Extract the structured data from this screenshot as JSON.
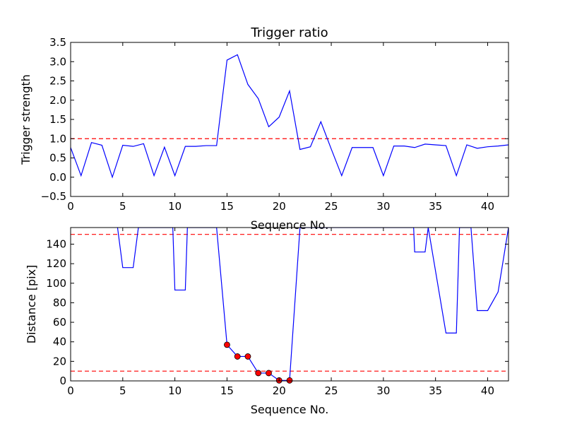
{
  "chart_data": [
    {
      "type": "line",
      "title": "Trigger ratio",
      "xlabel": "Sequence No.",
      "ylabel": "Trigger strength",
      "xlim": [
        0,
        42
      ],
      "ylim": [
        -0.5,
        3.5
      ],
      "xticks": [
        0,
        5,
        10,
        15,
        20,
        25,
        30,
        35,
        40
      ],
      "yticks": [
        -0.5,
        0.0,
        0.5,
        1.0,
        1.5,
        2.0,
        2.5,
        3.0,
        3.5
      ],
      "xtick_labels": [
        "0",
        "5",
        "10",
        "15",
        "20",
        "25",
        "30",
        "35",
        "40"
      ],
      "ytick_labels": [
        "−0.5",
        "0.0",
        "0.5",
        "1.0",
        "1.5",
        "2.0",
        "2.5",
        "3.0",
        "3.5"
      ],
      "grid": false,
      "series": [
        {
          "color": "#0000ff",
          "x": [
            0,
            1,
            2,
            3,
            4,
            5,
            6,
            7,
            8,
            9,
            10,
            11,
            12,
            13,
            14,
            15,
            16,
            17,
            18,
            19,
            20,
            21,
            22,
            23,
            24,
            25,
            26,
            27,
            28,
            29,
            30,
            31,
            32,
            33,
            34,
            35,
            36,
            37,
            38,
            39,
            40,
            41,
            42
          ],
          "y": [
            0.77,
            0.04,
            0.9,
            0.83,
            0.0,
            0.83,
            0.8,
            0.87,
            0.04,
            0.78,
            0.04,
            0.8,
            0.8,
            0.82,
            0.82,
            3.04,
            3.18,
            2.41,
            2.04,
            1.31,
            1.56,
            2.24,
            0.72,
            0.79,
            1.44,
            0.73,
            0.04,
            0.77,
            0.77,
            0.77,
            0.04,
            0.81,
            0.81,
            0.77,
            0.86,
            0.84,
            0.82,
            0.04,
            0.84,
            0.75,
            0.79,
            0.81,
            0.84
          ]
        }
      ],
      "reference_lines": [
        {
          "y": 1.0,
          "color": "#ff0000",
          "style": "dashed"
        }
      ]
    },
    {
      "type": "line",
      "title": "",
      "xlabel": "Sequence No.",
      "ylabel": "Distance [pix]",
      "xlim": [
        0,
        42
      ],
      "ylim": [
        0,
        157
      ],
      "xticks": [
        0,
        5,
        10,
        15,
        20,
        25,
        30,
        35,
        40
      ],
      "yticks": [
        0,
        20,
        40,
        60,
        80,
        100,
        120,
        140
      ],
      "xtick_labels": [
        "0",
        "5",
        "10",
        "15",
        "20",
        "25",
        "30",
        "35",
        "40"
      ],
      "ytick_labels": [
        "0",
        "20",
        "40",
        "60",
        "80",
        "100",
        "120",
        "140"
      ],
      "grid": false,
      "series": [
        {
          "color": "#0000ff",
          "x": [
            4.5,
            5,
            6,
            6.5,
            9.8,
            10,
            11,
            11.2,
            14,
            15,
            16,
            17,
            18,
            19,
            20,
            21,
            22,
            29,
            30,
            32.9,
            33,
            34,
            34.3,
            36,
            37,
            37.3,
            38.4,
            39,
            40,
            41,
            42
          ],
          "y": [
            157,
            116,
            116,
            157,
            157,
            93,
            93,
            157,
            157,
            37,
            25,
            25,
            8,
            8,
            0.5,
            0.5,
            157,
            157,
            157,
            157,
            132,
            132,
            157,
            49,
            49,
            157,
            157,
            72,
            72,
            91,
            157
          ]
        }
      ],
      "highlight_points": {
        "color": "#ff0000",
        "x": [
          15,
          16,
          17,
          18,
          19,
          20,
          21
        ],
        "y": [
          37,
          25,
          25,
          8,
          8,
          0.5,
          0.5
        ]
      },
      "reference_lines": [
        {
          "y": 150,
          "color": "#ff0000",
          "style": "dashed"
        },
        {
          "y": 10,
          "color": "#ff0000",
          "style": "dashed"
        }
      ]
    }
  ]
}
